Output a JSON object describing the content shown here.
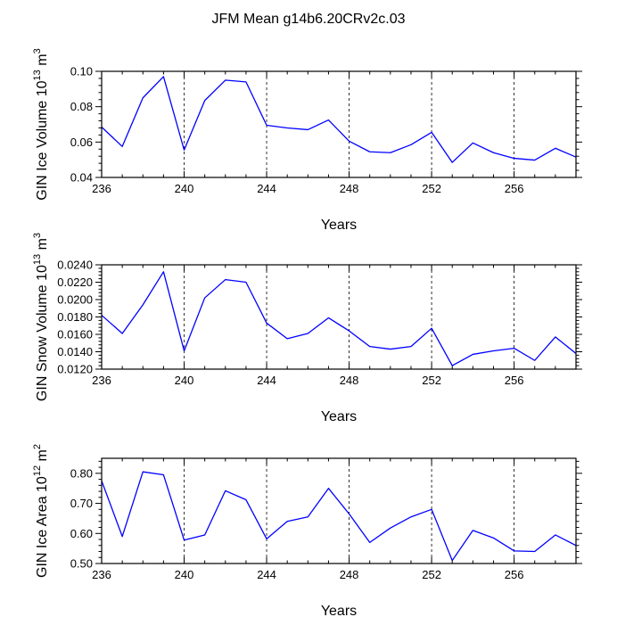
{
  "title": "JFM Mean g14b6.20CRv2c.03",
  "colors": {
    "line": "#0000ff",
    "axis": "#000000",
    "grid": "#000000"
  },
  "chart_data": [
    {
      "type": "line",
      "ylabel_main": "GIN Ice Volume 10",
      "ylabel_exp": "13",
      "ylabel_unit": " m",
      "ylabel_unit_exp": "3",
      "xlabel": "Years",
      "xlim": [
        236,
        259
      ],
      "ylim": [
        0.04,
        0.1
      ],
      "xticks": [
        236,
        240,
        244,
        248,
        252,
        256
      ],
      "xtick_labels": [
        "236",
        "240",
        "244",
        "248",
        "252",
        "256"
      ],
      "yticks": [
        0.04,
        0.06,
        0.08,
        0.1
      ],
      "ytick_labels": [
        "0.04",
        "0.06",
        "0.08",
        "0.10"
      ],
      "grid_x": [
        240,
        244,
        248,
        252,
        256
      ],
      "x": [
        236,
        237,
        238,
        239,
        240,
        241,
        242,
        243,
        244,
        245,
        246,
        247,
        248,
        249,
        250,
        251,
        252,
        253,
        254,
        255,
        256,
        257,
        258,
        259
      ],
      "values": [
        0.0685,
        0.0575,
        0.085,
        0.097,
        0.0555,
        0.0835,
        0.095,
        0.094,
        0.0695,
        0.068,
        0.067,
        0.0725,
        0.0605,
        0.0545,
        0.054,
        0.0585,
        0.0655,
        0.0485,
        0.0595,
        0.054,
        0.0508,
        0.0498,
        0.0565,
        0.0515
      ]
    },
    {
      "type": "line",
      "ylabel_main": "GIN Snow Volume 10",
      "ylabel_exp": "13",
      "ylabel_unit": " m",
      "ylabel_unit_exp": "3",
      "xlabel": "Years",
      "xlim": [
        236,
        259
      ],
      "ylim": [
        0.012,
        0.024
      ],
      "xticks": [
        236,
        240,
        244,
        248,
        252,
        256
      ],
      "xtick_labels": [
        "236",
        "240",
        "244",
        "248",
        "252",
        "256"
      ],
      "yticks": [
        0.012,
        0.014,
        0.016,
        0.018,
        0.02,
        0.022,
        0.024
      ],
      "ytick_labels": [
        "0.0120",
        "0.0140",
        "0.0160",
        "0.0180",
        "0.0200",
        "0.0220",
        "0.0240"
      ],
      "grid_x": [
        240,
        244,
        248,
        252,
        256
      ],
      "x": [
        236,
        237,
        238,
        239,
        240,
        241,
        242,
        243,
        244,
        245,
        246,
        247,
        248,
        249,
        250,
        251,
        252,
        253,
        254,
        255,
        256,
        257,
        258,
        259
      ],
      "values": [
        0.0182,
        0.0161,
        0.0194,
        0.0232,
        0.0141,
        0.0202,
        0.0223,
        0.022,
        0.0173,
        0.0155,
        0.0161,
        0.0179,
        0.0164,
        0.0146,
        0.0143,
        0.0146,
        0.0167,
        0.0124,
        0.0137,
        0.0141,
        0.0144,
        0.013,
        0.0157,
        0.0138
      ]
    },
    {
      "type": "line",
      "ylabel_main": "GIN Ice Area 10",
      "ylabel_exp": "12",
      "ylabel_unit": " m",
      "ylabel_unit_exp": "2",
      "xlabel": "Years",
      "xlim": [
        236,
        259
      ],
      "ylim": [
        0.5,
        0.85
      ],
      "xticks": [
        236,
        240,
        244,
        248,
        252,
        256
      ],
      "xtick_labels": [
        "236",
        "240",
        "244",
        "248",
        "252",
        "256"
      ],
      "yticks": [
        0.5,
        0.6,
        0.7,
        0.8
      ],
      "ytick_labels": [
        "0.50",
        "0.60",
        "0.70",
        "0.80"
      ],
      "grid_x": [
        240,
        244,
        248,
        252,
        256
      ],
      "x": [
        236,
        237,
        238,
        239,
        240,
        241,
        242,
        243,
        244,
        245,
        246,
        247,
        248,
        249,
        250,
        251,
        252,
        253,
        254,
        255,
        256,
        257,
        258,
        259
      ],
      "values": [
        0.775,
        0.59,
        0.805,
        0.795,
        0.578,
        0.595,
        0.742,
        0.712,
        0.582,
        0.64,
        0.655,
        0.75,
        0.665,
        0.57,
        0.618,
        0.655,
        0.68,
        0.51,
        0.61,
        0.585,
        0.542,
        0.54,
        0.595,
        0.56
      ]
    }
  ]
}
